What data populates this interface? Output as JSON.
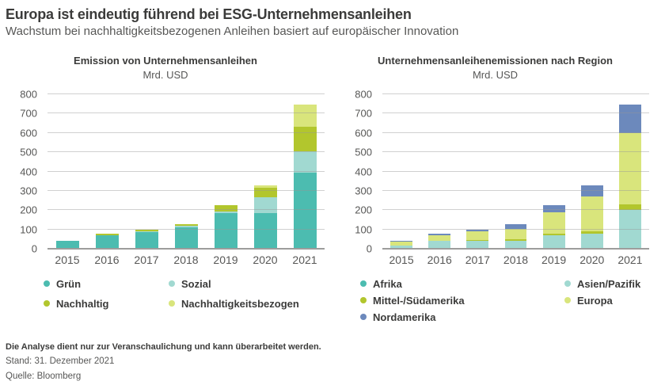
{
  "header": {
    "title": "Europa ist eindeutig führend bei ESG-Unternehmensanleihen",
    "subtitle": "Wachstum bei nachhaltigkeitsbezogenen Anleihen basiert auf europäischer Innovation"
  },
  "colors": {
    "green_bond": "#4cbcb0",
    "social_bond": "#a1d9d1",
    "sustainable_bond": "#b2c62d",
    "sustainability_linked_bond": "#d9e57c",
    "north_america": "#6c89bc",
    "title_text": "#3b3b3a",
    "secondary_text": "#575756",
    "gridline": "#c6c6c6",
    "baseline": "#9d9d9c"
  },
  "chart_data": [
    {
      "type": "bar",
      "stacked": true,
      "title": "Emission von Unternehmensanleihen",
      "unit_label": "Mrd. USD",
      "categories": [
        "2015",
        "2016",
        "2017",
        "2018",
        "2019",
        "2020",
        "2021"
      ],
      "series": [
        {
          "name": "Grün",
          "key": "gruen",
          "color": "#4cbcb0",
          "values": [
            42,
            70,
            88,
            110,
            183,
            185,
            395
          ]
        },
        {
          "name": "Sozial",
          "key": "sozial",
          "color": "#a1d9d1",
          "values": [
            0,
            0,
            4,
            10,
            10,
            80,
            110
          ]
        },
        {
          "name": "Nachhaltig",
          "key": "nachhaltig",
          "color": "#b2c62d",
          "values": [
            0,
            8,
            8,
            8,
            32,
            50,
            125
          ]
        },
        {
          "name": "Nachhaltigkeitsbezogen",
          "key": "nachhaltigkeitsbezogen",
          "color": "#d9e57c",
          "values": [
            0,
            0,
            0,
            0,
            0,
            15,
            115
          ]
        }
      ],
      "ylim": [
        0,
        800
      ],
      "ytick_step": 100,
      "grid": true,
      "legend_position": "bottom"
    },
    {
      "type": "bar",
      "stacked": true,
      "title": "Unternehmensanleihenemissionen nach Region",
      "unit_label": "Mrd. USD",
      "categories": [
        "2015",
        "2016",
        "2017",
        "2018",
        "2019",
        "2020",
        "2021"
      ],
      "series": [
        {
          "name": "Afrika",
          "key": "afrika",
          "color": "#4cbcb0",
          "values": [
            0,
            0,
            0,
            0,
            0,
            0,
            0
          ]
        },
        {
          "name": "Asien/Pazifik",
          "key": "asien-pazifik",
          "color": "#a1d9d1",
          "values": [
            15,
            43,
            40,
            42,
            68,
            76,
            200
          ]
        },
        {
          "name": "Mittel-/Südamerika",
          "key": "mittel-suedamerika",
          "color": "#b2c62d",
          "values": [
            0,
            0,
            5,
            7,
            12,
            14,
            30
          ]
        },
        {
          "name": "Europa",
          "key": "europa",
          "color": "#d9e57c",
          "values": [
            20,
            25,
            45,
            55,
            110,
            180,
            370
          ]
        },
        {
          "name": "Nordamerika",
          "key": "nordamerika",
          "color": "#6c89bc",
          "values": [
            7,
            10,
            10,
            24,
            35,
            60,
            145
          ]
        }
      ],
      "ylim": [
        0,
        800
      ],
      "ytick_step": 100,
      "grid": true,
      "legend_position": "bottom"
    }
  ],
  "footer": {
    "disclaimer": "Die Analyse dient nur zur Veranschaulichung und kann überarbeitet werden.",
    "as_of": "Stand: 31. Dezember 2021",
    "source": "Quelle: Bloomberg"
  }
}
